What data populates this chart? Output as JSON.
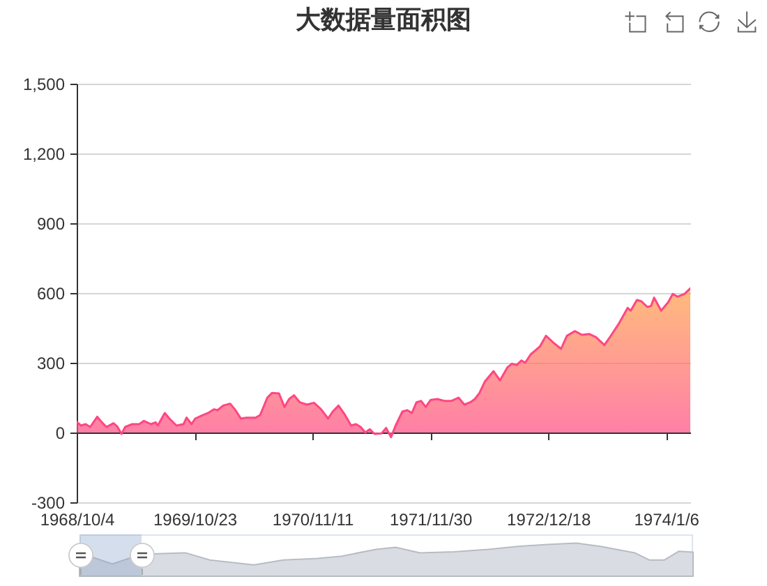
{
  "chart_data": {
    "type": "area",
    "title": "大数据量面积图",
    "color": "#ff4683",
    "x": [
      "1968-10-04",
      "1968-10-18",
      "1968-11-02",
      "1968-11-17",
      "1968-12-10",
      "1968-12-25",
      "1969-01-09",
      "1969-02-01",
      "1969-02-13",
      "1969-02-27",
      "1969-03-11",
      "1969-04-03",
      "1969-04-26",
      "1969-05-11",
      "1969-06-03",
      "1969-06-18",
      "1969-06-25",
      "1969-07-18",
      "1969-08-02",
      "1969-08-25",
      "1969-09-17",
      "1969-09-27",
      "1969-10-13",
      "1969-10-25",
      "1969-11-17",
      "1969-12-09",
      "1969-12-25",
      "1970-01-06",
      "1970-01-24",
      "1970-02-16",
      "1970-03-03",
      "1970-03-23",
      "1970-04-10",
      "1970-05-10",
      "1970-05-25",
      "1970-06-17",
      "1970-07-02",
      "1970-07-25",
      "1970-08-12",
      "1970-08-27",
      "1970-09-12",
      "1970-10-01",
      "1970-10-24",
      "1970-11-16",
      "1970-12-09",
      "1971-01-01",
      "1971-01-16",
      "1971-02-04",
      "1971-02-23",
      "1971-03-17",
      "1971-04-02",
      "1971-04-17",
      "1971-05-02",
      "1971-05-17",
      "1971-06-01",
      "1971-06-24",
      "1971-07-09",
      "1971-07-25",
      "1971-08-09",
      "1971-08-31",
      "1971-09-16",
      "1971-10-01",
      "1971-10-16",
      "1971-10-31",
      "1971-11-15",
      "1971-12-01",
      "1971-12-23",
      "1972-01-15",
      "1972-02-07",
      "1972-03-01",
      "1972-03-20",
      "1972-04-08",
      "1972-04-23",
      "1972-05-08",
      "1972-05-26",
      "1972-06-23",
      "1972-07-14",
      "1972-08-07",
      "1972-08-22",
      "1972-09-06",
      "1972-09-22",
      "1972-10-04",
      "1972-10-22",
      "1972-11-21",
      "1972-12-11",
      "1973-01-06",
      "1973-01-29",
      "1973-02-17",
      "1973-03-15",
      "1973-04-07",
      "1973-04-30",
      "1973-05-23",
      "1973-06-19",
      "1973-07-07",
      "1973-08-06",
      "1973-09-03",
      "1973-09-13",
      "1973-10-03",
      "1973-10-18",
      "1973-11-06",
      "1973-11-18",
      "1973-11-28",
      "1973-12-21",
      "1974-01-13",
      "1974-01-28",
      "1974-02-12",
      "1974-03-07",
      "1974-03-26"
    ],
    "values": [
      46,
      30,
      36,
      24,
      68,
      44,
      24,
      40,
      26,
      -6,
      24,
      36,
      36,
      50,
      36,
      44,
      30,
      84,
      60,
      30,
      36,
      64,
      36,
      60,
      74,
      86,
      100,
      96,
      116,
      124,
      100,
      60,
      64,
      64,
      76,
      150,
      170,
      168,
      110,
      144,
      160,
      130,
      120,
      128,
      100,
      60,
      90,
      116,
      80,
      30,
      36,
      24,
      0,
      14,
      -6,
      -4,
      20,
      -20,
      30,
      90,
      96,
      84,
      130,
      136,
      110,
      140,
      144,
      136,
      136,
      150,
      120,
      130,
      144,
      170,
      220,
      264,
      224,
      280,
      296,
      290,
      310,
      300,
      336,
      370,
      416,
      384,
      360,
      416,
      436,
      420,
      424,
      410,
      376,
      410,
      470,
      536,
      524,
      570,
      564,
      540,
      544,
      580,
      524,
      560,
      596,
      584,
      596,
      620
    ],
    "xlim": [
      "1968-10-04",
      "1974-03-26"
    ],
    "xticks": [
      {
        "value": "1968-10-04",
        "label": "1968/10/4"
      },
      {
        "value": "1969-10-23",
        "label": "1969/10/23"
      },
      {
        "value": "1970-11-11",
        "label": "1970/11/11"
      },
      {
        "value": "1971-11-30",
        "label": "1971/11/30"
      },
      {
        "value": "1972-12-18",
        "label": "1972/12/18"
      },
      {
        "value": "1974-01-06",
        "label": "1974/1/6"
      }
    ],
    "ylim": [
      -300,
      1500
    ],
    "yticks": [
      -300,
      0,
      300,
      600,
      900,
      {
        "value": 1200,
        "label": "1,200"
      },
      {
        "value": 1500,
        "label": "1,500"
      }
    ],
    "grid": "y"
  }
}
